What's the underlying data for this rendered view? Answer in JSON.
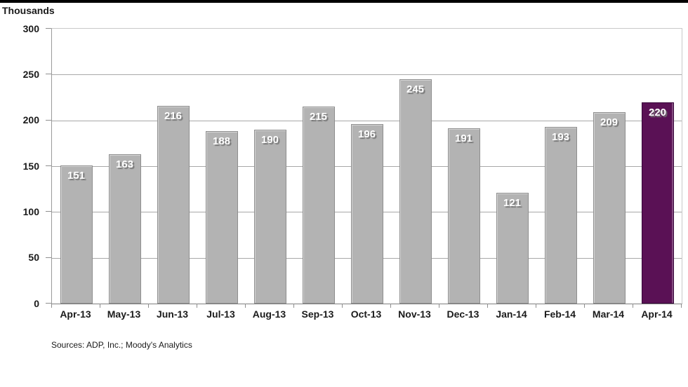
{
  "chart_data": {
    "type": "bar",
    "unit_label": "Thousands",
    "categories": [
      "Apr-13",
      "May-13",
      "Jun-13",
      "Jul-13",
      "Aug-13",
      "Sep-13",
      "Oct-13",
      "Nov-13",
      "Dec-13",
      "Jan-14",
      "Feb-14",
      "Mar-14",
      "Apr-14"
    ],
    "values": [
      151,
      163,
      216,
      188,
      190,
      215,
      196,
      245,
      191,
      121,
      193,
      209,
      220
    ],
    "ylim": [
      0,
      300
    ],
    "yticks": [
      300,
      250,
      200,
      150,
      100,
      50,
      0
    ],
    "grid": "horizontal",
    "legend": "none",
    "value_labels": "inside-top",
    "bar_color": "#b3b3b3",
    "highlight_color": "#5a1155",
    "highlight_index": 12,
    "source_note": "Sources: ADP, Inc.; Moody's Analytics"
  }
}
